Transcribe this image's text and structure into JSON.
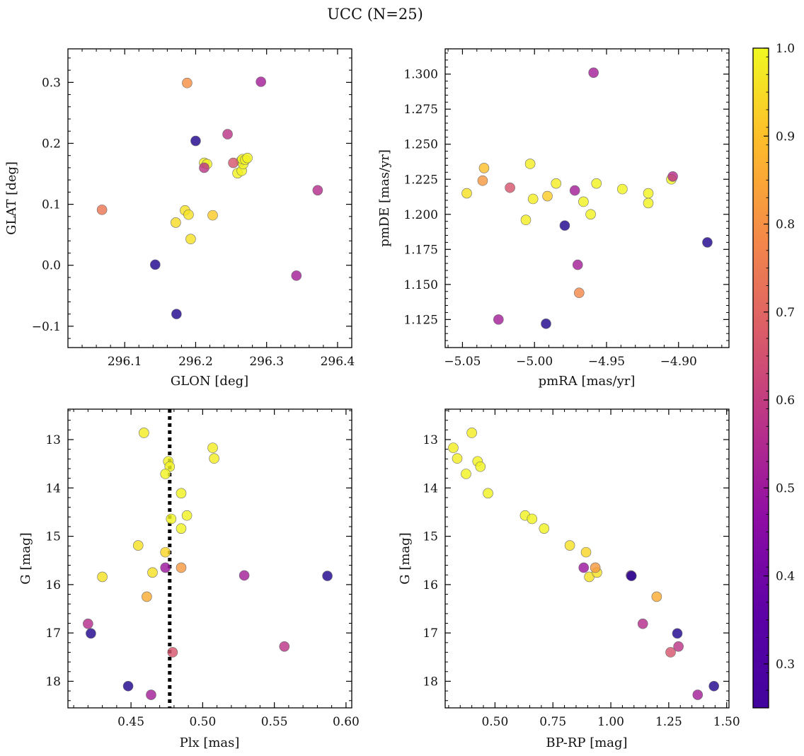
{
  "figure": {
    "title": "UCC (N=25)"
  },
  "colorbar": {
    "colormap": "plasma",
    "range": [
      0.25,
      1.0
    ],
    "ticks": [
      "0.3",
      "0.4",
      "0.5",
      "0.6",
      "0.7",
      "0.8",
      "0.9",
      "1.0"
    ]
  },
  "chart_data": [
    {
      "type": "scatter",
      "id": "sky",
      "title": "",
      "xlabel": "GLON [deg]",
      "ylabel": "GLAT [deg]",
      "xlim": [
        296.02,
        296.42
      ],
      "ylim": [
        -0.135,
        0.355
      ],
      "xticks": [
        "296.1",
        "296.2",
        "296.3",
        "296.4"
      ],
      "yticks": [
        "−0.1",
        "0.0",
        "0.1",
        "0.2",
        "0.3"
      ],
      "points": [
        {
          "x": 296.2,
          "y": 0.204,
          "c": 0.28
        },
        {
          "x": 296.143,
          "y": 0.001,
          "c": 0.28
        },
        {
          "x": 296.173,
          "y": -0.08,
          "c": 0.28
        },
        {
          "x": 296.245,
          "y": 0.215,
          "c": 0.58
        },
        {
          "x": 296.292,
          "y": 0.301,
          "c": 0.52
        },
        {
          "x": 296.372,
          "y": 0.123,
          "c": 0.56
        },
        {
          "x": 296.342,
          "y": -0.017,
          "c": 0.52
        },
        {
          "x": 296.212,
          "y": 0.16,
          "c": 0.58
        },
        {
          "x": 296.253,
          "y": 0.168,
          "c": 0.66
        },
        {
          "x": 296.068,
          "y": 0.091,
          "c": 0.74
        },
        {
          "x": 296.188,
          "y": 0.299,
          "c": 0.8
        },
        {
          "x": 296.224,
          "y": 0.082,
          "c": 0.92
        },
        {
          "x": 296.172,
          "y": 0.07,
          "c": 0.95
        },
        {
          "x": 296.185,
          "y": 0.09,
          "c": 0.96
        },
        {
          "x": 296.19,
          "y": 0.083,
          "c": 0.96
        },
        {
          "x": 296.193,
          "y": 0.043,
          "c": 0.96
        },
        {
          "x": 296.212,
          "y": 0.168,
          "c": 0.98
        },
        {
          "x": 296.216,
          "y": 0.166,
          "c": 0.98
        },
        {
          "x": 296.259,
          "y": 0.151,
          "c": 0.99
        },
        {
          "x": 296.265,
          "y": 0.155,
          "c": 0.99
        },
        {
          "x": 296.264,
          "y": 0.171,
          "c": 0.99
        },
        {
          "x": 296.267,
          "y": 0.166,
          "c": 0.99
        },
        {
          "x": 296.266,
          "y": 0.174,
          "c": 0.99
        },
        {
          "x": 296.27,
          "y": 0.173,
          "c": 0.99
        },
        {
          "x": 296.273,
          "y": 0.176,
          "c": 0.99
        }
      ]
    },
    {
      "type": "scatter",
      "id": "pm",
      "title": "",
      "xlabel": "pmRA [mas/yr]",
      "ylabel": "pmDE [mas/yr]",
      "xlim": [
        -5.062,
        -4.865
      ],
      "ylim": [
        1.105,
        1.318
      ],
      "xticks": [
        "−5.05",
        "−5.00",
        "−4.95",
        "−4.90"
      ],
      "yticks": [
        "1.125",
        "1.150",
        "1.175",
        "1.200",
        "1.225",
        "1.250",
        "1.275",
        "1.300"
      ],
      "points": [
        {
          "x": -4.979,
          "y": 1.192,
          "c": 0.28
        },
        {
          "x": -4.992,
          "y": 1.122,
          "c": 0.28
        },
        {
          "x": -4.88,
          "y": 1.18,
          "c": 0.28
        },
        {
          "x": -4.959,
          "y": 1.301,
          "c": 0.52
        },
        {
          "x": -5.025,
          "y": 1.125,
          "c": 0.52
        },
        {
          "x": -4.97,
          "y": 1.164,
          "c": 0.52
        },
        {
          "x": -4.972,
          "y": 1.217,
          "c": 0.52
        },
        {
          "x": -4.904,
          "y": 1.227,
          "c": 0.56
        },
        {
          "x": -5.017,
          "y": 1.219,
          "c": 0.66
        },
        {
          "x": -4.969,
          "y": 1.144,
          "c": 0.78
        },
        {
          "x": -5.036,
          "y": 1.224,
          "c": 0.82
        },
        {
          "x": -5.035,
          "y": 1.233,
          "c": 0.9
        },
        {
          "x": -4.991,
          "y": 1.213,
          "c": 0.92
        },
        {
          "x": -5.047,
          "y": 1.215,
          "c": 0.96
        },
        {
          "x": -5.003,
          "y": 1.236,
          "c": 0.98
        },
        {
          "x": -5.001,
          "y": 1.211,
          "c": 0.98
        },
        {
          "x": -5.006,
          "y": 1.196,
          "c": 0.98
        },
        {
          "x": -4.985,
          "y": 1.222,
          "c": 0.98
        },
        {
          "x": -4.966,
          "y": 1.209,
          "c": 0.99
        },
        {
          "x": -4.961,
          "y": 1.2,
          "c": 0.99
        },
        {
          "x": -4.957,
          "y": 1.222,
          "c": 0.99
        },
        {
          "x": -4.939,
          "y": 1.218,
          "c": 0.99
        },
        {
          "x": -4.921,
          "y": 1.215,
          "c": 0.99
        },
        {
          "x": -4.921,
          "y": 1.208,
          "c": 0.99
        },
        {
          "x": -4.905,
          "y": 1.225,
          "c": 0.99
        }
      ]
    },
    {
      "type": "scatter",
      "id": "plx",
      "title": "",
      "xlabel": "Plx [mas]",
      "ylabel": "G [mag]",
      "xlim": [
        0.406,
        0.604
      ],
      "ylim": [
        18.55,
        12.37
      ],
      "y_inverted": true,
      "xticks": [
        "0.45",
        "0.50",
        "0.55",
        "0.60"
      ],
      "yticks": [
        "13",
        "14",
        "15",
        "16",
        "17",
        "18"
      ],
      "vline": 0.477,
      "points": [
        {
          "x": 0.587,
          "y": 15.82,
          "c": 0.28
        },
        {
          "x": 0.422,
          "y": 17.01,
          "c": 0.28
        },
        {
          "x": 0.448,
          "y": 18.1,
          "c": 0.28
        },
        {
          "x": 0.529,
          "y": 15.81,
          "c": 0.52
        },
        {
          "x": 0.464,
          "y": 18.28,
          "c": 0.52
        },
        {
          "x": 0.474,
          "y": 15.65,
          "c": 0.5
        },
        {
          "x": 0.42,
          "y": 16.81,
          "c": 0.56
        },
        {
          "x": 0.557,
          "y": 17.28,
          "c": 0.58
        },
        {
          "x": 0.479,
          "y": 17.4,
          "c": 0.66
        },
        {
          "x": 0.485,
          "y": 15.65,
          "c": 0.82
        },
        {
          "x": 0.461,
          "y": 16.25,
          "c": 0.86
        },
        {
          "x": 0.474,
          "y": 15.33,
          "c": 0.94
        },
        {
          "x": 0.455,
          "y": 15.19,
          "c": 0.96
        },
        {
          "x": 0.43,
          "y": 15.84,
          "c": 0.96
        },
        {
          "x": 0.465,
          "y": 15.75,
          "c": 0.96
        },
        {
          "x": 0.459,
          "y": 12.86,
          "c": 0.98
        },
        {
          "x": 0.507,
          "y": 13.17,
          "c": 0.98
        },
        {
          "x": 0.508,
          "y": 13.39,
          "c": 0.98
        },
        {
          "x": 0.476,
          "y": 13.45,
          "c": 0.99
        },
        {
          "x": 0.477,
          "y": 13.56,
          "c": 0.99
        },
        {
          "x": 0.474,
          "y": 13.71,
          "c": 0.99
        },
        {
          "x": 0.485,
          "y": 14.11,
          "c": 0.99
        },
        {
          "x": 0.489,
          "y": 14.57,
          "c": 0.99
        },
        {
          "x": 0.478,
          "y": 14.64,
          "c": 0.99
        },
        {
          "x": 0.485,
          "y": 14.84,
          "c": 0.99
        }
      ]
    },
    {
      "type": "scatter",
      "id": "cmd",
      "title": "",
      "xlabel": "BP-RP [mag]",
      "ylabel": "G [mag]",
      "xlim": [
        0.285,
        1.51
      ],
      "ylim": [
        18.55,
        12.37
      ],
      "y_inverted": true,
      "xticks": [
        "0.50",
        "0.75",
        "1.00",
        "1.25",
        "1.50"
      ],
      "yticks": [
        "13",
        "14",
        "15",
        "16",
        "17",
        "18"
      ],
      "points": [
        {
          "x": 1.445,
          "y": 18.1,
          "c": 0.28
        },
        {
          "x": 1.287,
          "y": 17.01,
          "c": 0.28
        },
        {
          "x": 1.089,
          "y": 15.82,
          "c": 0.28
        },
        {
          "x": 1.375,
          "y": 18.28,
          "c": 0.52
        },
        {
          "x": 1.087,
          "y": 15.81,
          "c": 0.52
        },
        {
          "x": 0.883,
          "y": 15.65,
          "c": 0.5
        },
        {
          "x": 1.292,
          "y": 17.28,
          "c": 0.58
        },
        {
          "x": 1.138,
          "y": 16.81,
          "c": 0.56
        },
        {
          "x": 1.258,
          "y": 17.4,
          "c": 0.66
        },
        {
          "x": 0.933,
          "y": 15.65,
          "c": 0.82
        },
        {
          "x": 1.198,
          "y": 16.25,
          "c": 0.86
        },
        {
          "x": 0.893,
          "y": 15.33,
          "c": 0.94
        },
        {
          "x": 0.823,
          "y": 15.19,
          "c": 0.96
        },
        {
          "x": 0.907,
          "y": 15.84,
          "c": 0.96
        },
        {
          "x": 0.94,
          "y": 15.75,
          "c": 0.96
        },
        {
          "x": 0.4,
          "y": 12.86,
          "c": 0.98
        },
        {
          "x": 0.32,
          "y": 13.17,
          "c": 0.98
        },
        {
          "x": 0.337,
          "y": 13.39,
          "c": 0.98
        },
        {
          "x": 0.425,
          "y": 13.45,
          "c": 0.99
        },
        {
          "x": 0.437,
          "y": 13.56,
          "c": 0.99
        },
        {
          "x": 0.375,
          "y": 13.71,
          "c": 0.99
        },
        {
          "x": 0.47,
          "y": 14.11,
          "c": 0.99
        },
        {
          "x": 0.63,
          "y": 14.57,
          "c": 0.99
        },
        {
          "x": 0.66,
          "y": 14.64,
          "c": 0.99
        },
        {
          "x": 0.712,
          "y": 14.84,
          "c": 0.99
        }
      ]
    }
  ]
}
